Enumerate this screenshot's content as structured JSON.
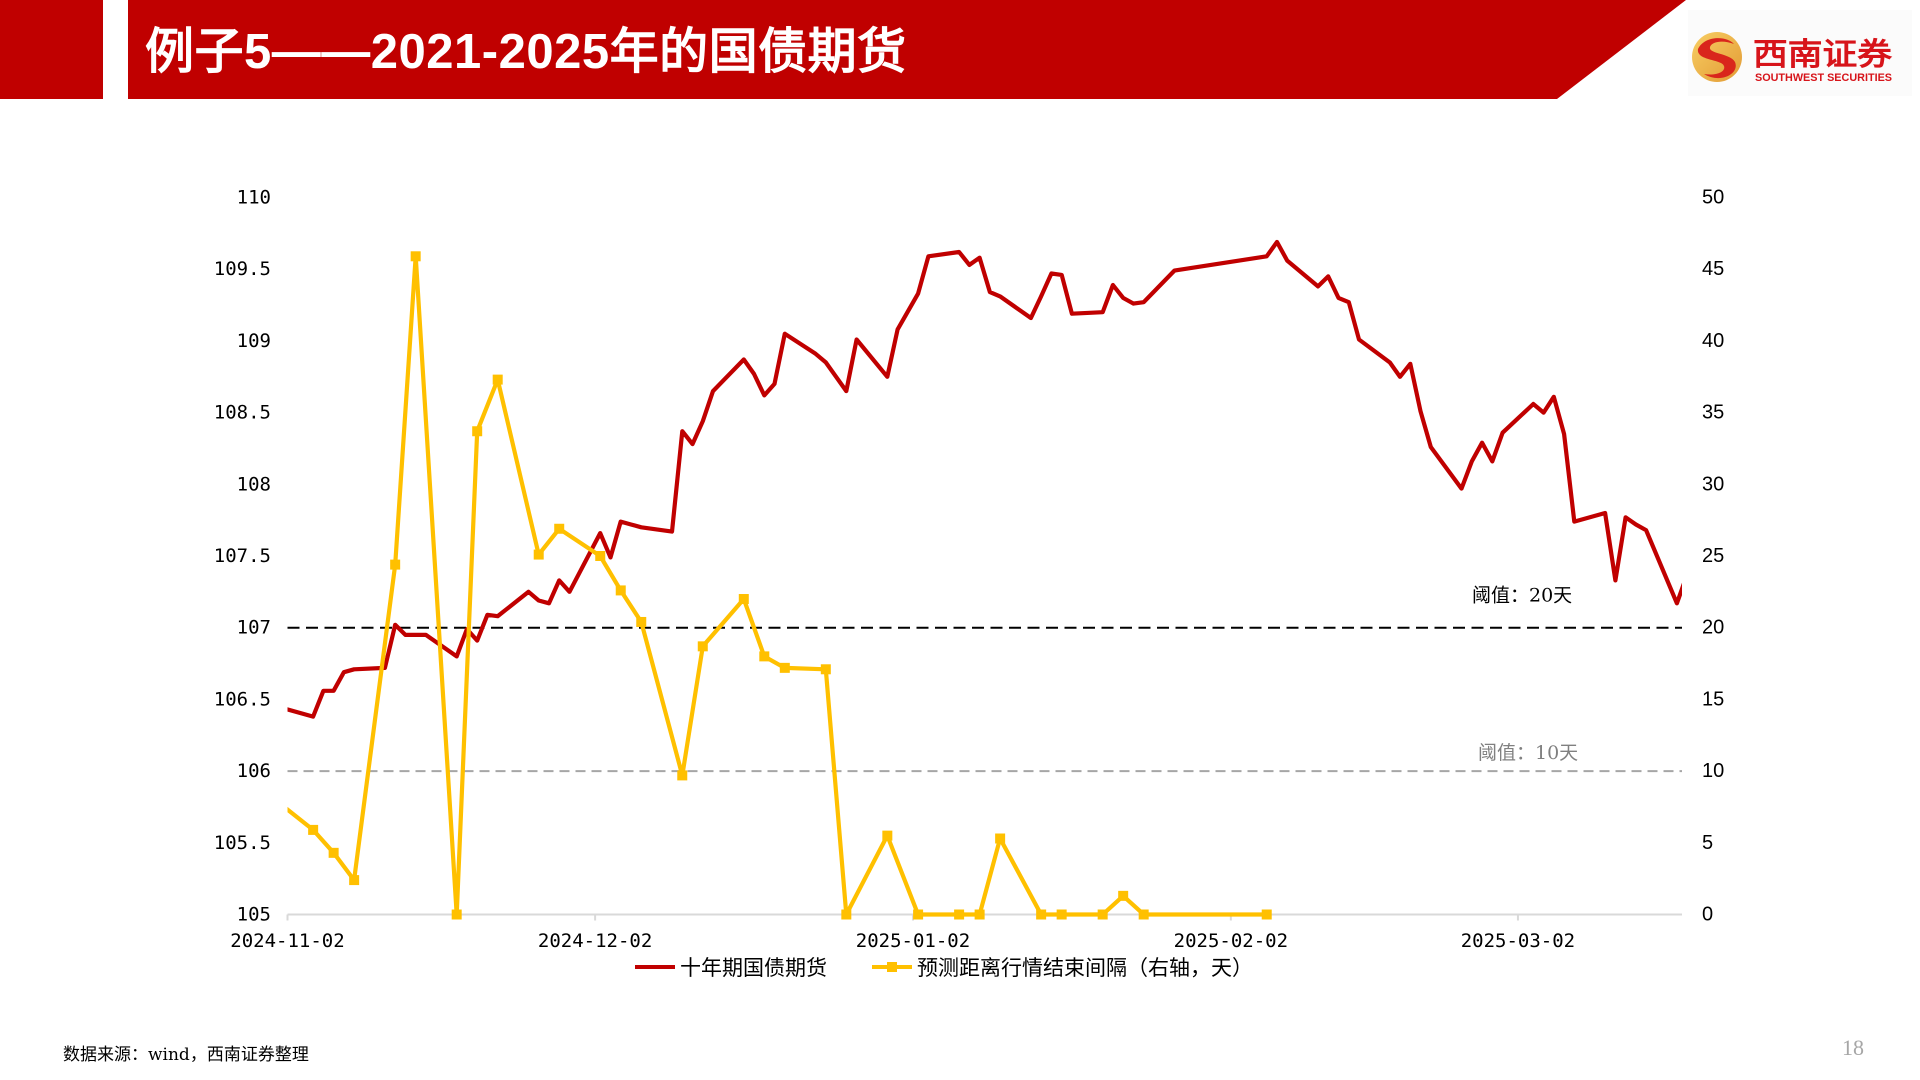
{
  "header": {
    "title": "例子5——2021-2025年的国债期货",
    "bar_color": "#C00000"
  },
  "logo": {
    "cn_name": "西南证券",
    "en_name": "SOUTHWEST SECURITIES",
    "text_color": "#D7141A"
  },
  "chart_data": {
    "type": "line",
    "title": "",
    "grid": false,
    "x_axis": {
      "type": "date",
      "range": [
        "2024-11-02",
        "2025-03-18"
      ],
      "tick_labels": [
        "2024-11-02",
        "2024-12-02",
        "2025-01-02",
        "2025-02-02",
        "2025-03-02"
      ]
    },
    "y_left": {
      "min": 105,
      "max": 110,
      "step": 0.5,
      "tick_labels": [
        "110",
        "109.5",
        "109",
        "108.5",
        "108",
        "107.5",
        "107",
        "106.5",
        "106",
        "105.5",
        "105"
      ]
    },
    "y_right": {
      "min": 0,
      "max": 50,
      "step": 5,
      "unit": "天",
      "tick_labels": [
        "50",
        "45",
        "40",
        "35",
        "30",
        "25",
        "20",
        "15",
        "10",
        "5",
        "0"
      ]
    },
    "series": [
      {
        "name": "十年期国债期货",
        "axis": "left",
        "color": "#C00000",
        "marker": "none",
        "points": [
          [
            "2024-11-01",
            106.44
          ],
          [
            "2024-11-04",
            106.38
          ],
          [
            "2024-11-05",
            106.56
          ],
          [
            "2024-11-06",
            106.56
          ],
          [
            "2024-11-07",
            106.69
          ],
          [
            "2024-11-08",
            106.71
          ],
          [
            "2024-11-11",
            106.72
          ],
          [
            "2024-11-12",
            107.02
          ],
          [
            "2024-11-13",
            106.95
          ],
          [
            "2024-11-14",
            106.95
          ],
          [
            "2024-11-15",
            106.95
          ],
          [
            "2024-11-18",
            106.8
          ],
          [
            "2024-11-19",
            106.99
          ],
          [
            "2024-11-20",
            106.91
          ],
          [
            "2024-11-21",
            107.09
          ],
          [
            "2024-11-22",
            107.08
          ],
          [
            "2024-11-25",
            107.25
          ],
          [
            "2024-11-26",
            107.19
          ],
          [
            "2024-11-27",
            107.17
          ],
          [
            "2024-11-28",
            107.33
          ],
          [
            "2024-11-29",
            107.25
          ],
          [
            "2024-12-02",
            107.66
          ],
          [
            "2024-12-03",
            107.49
          ],
          [
            "2024-12-04",
            107.74
          ],
          [
            "2024-12-05",
            107.72
          ],
          [
            "2024-12-06",
            107.7
          ],
          [
            "2024-12-09",
            107.67
          ],
          [
            "2024-12-10",
            108.37
          ],
          [
            "2024-12-11",
            108.28
          ],
          [
            "2024-12-12",
            108.44
          ],
          [
            "2024-12-13",
            108.65
          ],
          [
            "2024-12-16",
            108.87
          ],
          [
            "2024-12-17",
            108.77
          ],
          [
            "2024-12-18",
            108.62
          ],
          [
            "2024-12-19",
            108.7
          ],
          [
            "2024-12-20",
            109.05
          ],
          [
            "2024-12-23",
            108.91
          ],
          [
            "2024-12-24",
            108.85
          ],
          [
            "2024-12-25",
            108.75
          ],
          [
            "2024-12-26",
            108.65
          ],
          [
            "2024-12-27",
            109.01
          ],
          [
            "2024-12-30",
            108.75
          ],
          [
            "2024-12-31",
            109.08
          ],
          [
            "2025-01-02",
            109.33
          ],
          [
            "2025-01-03",
            109.59
          ],
          [
            "2025-01-06",
            109.62
          ],
          [
            "2025-01-07",
            109.53
          ],
          [
            "2025-01-08",
            109.58
          ],
          [
            "2025-01-09",
            109.34
          ],
          [
            "2025-01-10",
            109.31
          ],
          [
            "2025-01-13",
            109.16
          ],
          [
            "2025-01-14",
            109.31
          ],
          [
            "2025-01-15",
            109.47
          ],
          [
            "2025-01-16",
            109.46
          ],
          [
            "2025-01-17",
            109.19
          ],
          [
            "2025-01-20",
            109.2
          ],
          [
            "2025-01-21",
            109.39
          ],
          [
            "2025-01-22",
            109.3
          ],
          [
            "2025-01-23",
            109.26
          ],
          [
            "2025-01-24",
            109.27
          ],
          [
            "2025-01-27",
            109.49
          ],
          [
            "2025-02-05",
            109.59
          ],
          [
            "2025-02-06",
            109.69
          ],
          [
            "2025-02-07",
            109.56
          ],
          [
            "2025-02-10",
            109.38
          ],
          [
            "2025-02-11",
            109.45
          ],
          [
            "2025-02-12",
            109.3
          ],
          [
            "2025-02-13",
            109.27
          ],
          [
            "2025-02-14",
            109.01
          ],
          [
            "2025-02-17",
            108.85
          ],
          [
            "2025-02-18",
            108.75
          ],
          [
            "2025-02-19",
            108.84
          ],
          [
            "2025-02-20",
            108.51
          ],
          [
            "2025-02-21",
            108.26
          ],
          [
            "2025-02-24",
            107.97
          ],
          [
            "2025-02-25",
            108.16
          ],
          [
            "2025-02-26",
            108.29
          ],
          [
            "2025-02-27",
            108.16
          ],
          [
            "2025-02-28",
            108.36
          ],
          [
            "2025-03-03",
            108.56
          ],
          [
            "2025-03-04",
            108.5
          ],
          [
            "2025-03-05",
            108.61
          ],
          [
            "2025-03-06",
            108.35
          ],
          [
            "2025-03-07",
            107.74
          ],
          [
            "2025-03-10",
            107.8
          ],
          [
            "2025-03-11",
            107.33
          ],
          [
            "2025-03-12",
            107.77
          ],
          [
            "2025-03-13",
            107.72
          ],
          [
            "2025-03-14",
            107.68
          ],
          [
            "2025-03-17",
            107.17
          ],
          [
            "2025-03-18",
            107.37
          ]
        ]
      },
      {
        "name": "预测距离行情结束间隔（右轴，天）",
        "axis": "right",
        "color": "#FFC000",
        "marker": "square",
        "points": [
          [
            "2024-11-01",
            7.6
          ],
          [
            "2024-11-04",
            5.9
          ],
          [
            "2024-11-06",
            4.3
          ],
          [
            "2024-11-08",
            2.4
          ],
          [
            "2024-11-12",
            24.4
          ],
          [
            "2024-11-14",
            45.9
          ],
          [
            "2024-11-18",
            0
          ],
          [
            "2024-11-20",
            33.7
          ],
          [
            "2024-11-22",
            37.3
          ],
          [
            "2024-11-26",
            25.1
          ],
          [
            "2024-11-28",
            26.9
          ],
          [
            "2024-12-02",
            25.0
          ],
          [
            "2024-12-04",
            22.6
          ],
          [
            "2024-12-06",
            20.4
          ],
          [
            "2024-12-10",
            9.7
          ],
          [
            "2024-12-12",
            18.7
          ],
          [
            "2024-12-16",
            22.0
          ],
          [
            "2024-12-18",
            18.0
          ],
          [
            "2024-12-20",
            17.2
          ],
          [
            "2024-12-24",
            17.1
          ],
          [
            "2024-12-26",
            0
          ],
          [
            "2024-12-30",
            5.5
          ],
          [
            "2025-01-02",
            0
          ],
          [
            "2025-01-06",
            0
          ],
          [
            "2025-01-08",
            0
          ],
          [
            "2025-01-10",
            5.3
          ],
          [
            "2025-01-14",
            0
          ],
          [
            "2025-01-16",
            0
          ],
          [
            "2025-01-20",
            0
          ],
          [
            "2025-01-22",
            1.3
          ],
          [
            "2025-01-24",
            0
          ],
          [
            "2025-02-05",
            0
          ]
        ]
      }
    ],
    "reference_lines": [
      {
        "axis": "right",
        "value": 20,
        "label": "阈值：20天",
        "color": "#000000",
        "style": "dashed"
      },
      {
        "axis": "right",
        "value": 10,
        "label": "阈值：10天",
        "color": "#A6A6A6",
        "label_color": "#808080",
        "style": "dashed"
      }
    ],
    "legend": {
      "position": "bottom",
      "entries": [
        {
          "label": "十年期国债期货",
          "color": "#C00000",
          "marker": "none"
        },
        {
          "label": "预测距离行情结束间隔（右轴，天）",
          "color": "#FFC000",
          "marker": "square"
        }
      ]
    },
    "axis_line_color": "#D9D9D9"
  },
  "footer": {
    "source": "数据来源：wind，西南证券整理",
    "page_number": "18"
  }
}
